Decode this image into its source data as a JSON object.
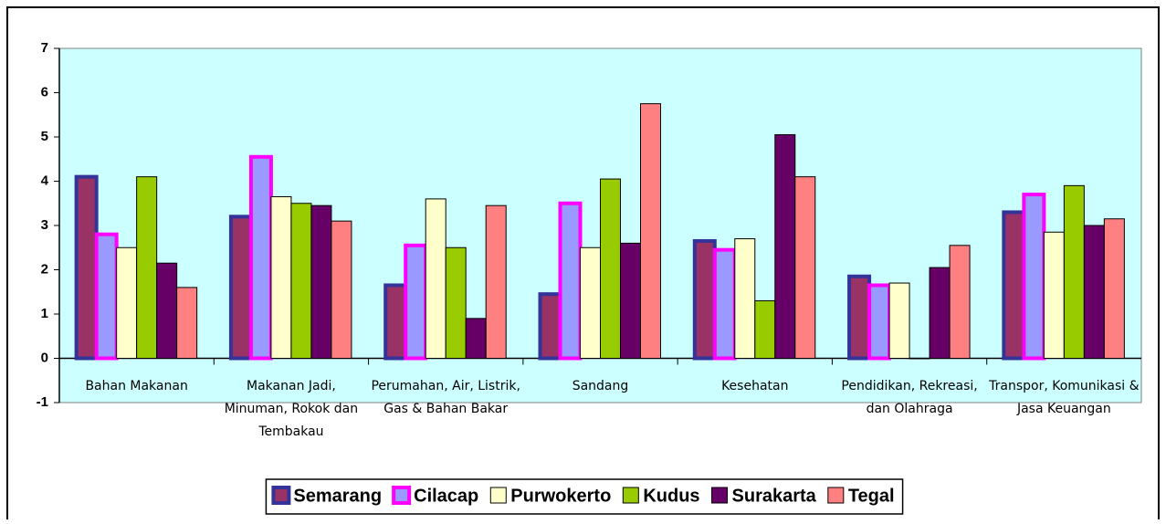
{
  "chart_data": {
    "type": "bar",
    "categories": [
      "Bahan Makanan",
      "Makanan Jadi, Minuman, Rokok dan Tembakau",
      "Perumahan, Air, Listrik, Gas & Bahan Bakar",
      "Sandang",
      "Kesehatan",
      "Pendidikan, Rekreasi, dan Olahraga",
      "Transpor, Komunikasi & Jasa Keuangan"
    ],
    "series": [
      {
        "name": "Semarang",
        "color": "#993366",
        "border": "#333399",
        "values": [
          4.1,
          3.2,
          1.65,
          1.45,
          2.65,
          1.85,
          3.3
        ]
      },
      {
        "name": "Cilacap",
        "color": "#9999ff",
        "border": "#ff00ff",
        "values": [
          2.8,
          4.55,
          2.55,
          3.5,
          2.45,
          1.65,
          3.7
        ]
      },
      {
        "name": "Purwokerto",
        "color": "#ffffcc",
        "border": "#000000",
        "values": [
          2.5,
          3.65,
          3.6,
          2.5,
          2.7,
          1.7,
          2.85
        ]
      },
      {
        "name": "Kudus",
        "color": "#99cc00",
        "border": "#000000",
        "values": [
          4.1,
          3.5,
          2.5,
          4.05,
          1.3,
          0,
          3.9
        ]
      },
      {
        "name": "Surakarta",
        "color": "#660066",
        "border": "#000000",
        "values": [
          2.15,
          3.45,
          0.9,
          2.6,
          5.05,
          2.05,
          3.0
        ]
      },
      {
        "name": "Tegal",
        "color": "#ff8080",
        "border": "#000000",
        "values": [
          1.6,
          3.1,
          3.45,
          5.75,
          4.1,
          2.55,
          3.15
        ]
      }
    ],
    "ylim": [
      -1,
      7
    ],
    "yticks": [
      -1,
      0,
      1,
      2,
      3,
      4,
      5,
      6,
      7
    ],
    "grid": false,
    "plot_background": "#ccffff",
    "legend": "bottom"
  }
}
